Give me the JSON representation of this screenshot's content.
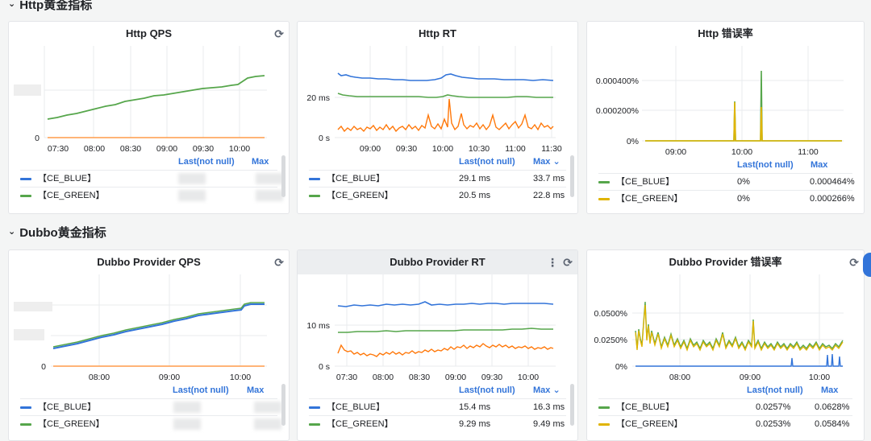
{
  "rows": [
    {
      "title": "Http黄金指标",
      "chevron": "›"
    },
    {
      "title": "Dubbo黄金指标",
      "chevron": "›"
    }
  ],
  "legend_headers": {
    "last": "Last(not null)",
    "max": "Max",
    "max_sorted": "Max ⌄"
  },
  "colors": {
    "blue": "#3274d9",
    "green": "#56a64b",
    "orange": "#ff780a",
    "yellow": "#e0b400",
    "grid": "#e9ebee"
  },
  "panels": {
    "http_qps": {
      "title": "Http QPS",
      "yticks": [
        "",
        "0"
      ],
      "xticks": [
        "07:30",
        "08:00",
        "08:30",
        "09:00",
        "09:30",
        "10:00"
      ],
      "legend": [
        {
          "name": "【CE_BLUE】",
          "last": "",
          "max": ""
        },
        {
          "name": "【CE_GREEN】",
          "last": "",
          "max": ""
        }
      ]
    },
    "http_rt": {
      "title": "Http RT",
      "yticks": [
        "20 ms",
        "0 s"
      ],
      "xticks": [
        "09:00",
        "09:30",
        "10:00",
        "10:30",
        "11:00",
        "11:30"
      ],
      "legend": [
        {
          "name": "【CE_BLUE】",
          "last": "29.1 ms",
          "max": "33.7 ms"
        },
        {
          "name": "【CE_GREEN】",
          "last": "20.5 ms",
          "max": "22.8 ms"
        }
      ]
    },
    "http_err": {
      "title": "Http 错误率",
      "yticks": [
        "0.000400%",
        "0.000200%",
        "0%"
      ],
      "xticks": [
        "09:00",
        "10:00",
        "11:00"
      ],
      "legend": [
        {
          "name": "【CE_BLUE】",
          "last": "0%",
          "max": "0.000464%"
        },
        {
          "name": "【CE_GREEN】",
          "last": "0%",
          "max": "0.000266%"
        }
      ]
    },
    "dubbo_qps": {
      "title": "Dubbo Provider QPS",
      "yticks": [
        "",
        "",
        "0"
      ],
      "xticks": [
        "08:00",
        "09:00",
        "10:00"
      ],
      "legend": [
        {
          "name": "【CE_BLUE】",
          "last": "",
          "max": ""
        },
        {
          "name": "【CE_GREEN】",
          "last": "",
          "max": ""
        }
      ]
    },
    "dubbo_rt": {
      "title": "Dubbo Provider RT",
      "yticks": [
        "10 ms",
        "0 s"
      ],
      "xticks": [
        "07:30",
        "08:00",
        "08:30",
        "09:00",
        "09:30",
        "10:00"
      ],
      "legend": [
        {
          "name": "【CE_BLUE】",
          "last": "15.4 ms",
          "max": "16.3 ms"
        },
        {
          "name": "【CE_GREEN】",
          "last": "9.29 ms",
          "max": "9.49 ms"
        }
      ]
    },
    "dubbo_err": {
      "title": "Dubbo Provider 错误率",
      "yticks": [
        "0.0500%",
        "0.0250%",
        "0%"
      ],
      "xticks": [
        "08:00",
        "09:00",
        "10:00"
      ],
      "legend": [
        {
          "name": "【CE_BLUE】",
          "last": "0.0257%",
          "max": "0.0628%"
        },
        {
          "name": "【CE_GREEN】",
          "last": "0.0253%",
          "max": "0.0584%"
        }
      ]
    }
  }
}
